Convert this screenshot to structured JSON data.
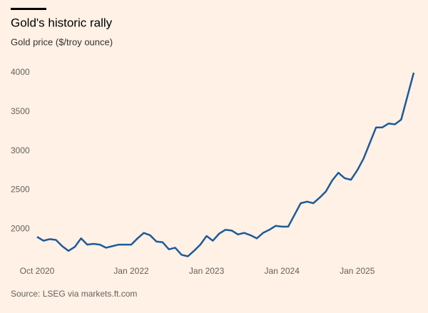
{
  "chart_data": {
    "type": "line",
    "title": "Gold's historic rally",
    "subtitle": "Gold price ($/troy ounce)",
    "source": "Source: LSEG via markets.ft.com",
    "x": [
      "2020-10",
      "2020-11",
      "2020-12",
      "2021-01",
      "2021-02",
      "2021-03",
      "2021-04",
      "2021-05",
      "2021-06",
      "2021-07",
      "2021-08",
      "2021-09",
      "2021-10",
      "2021-11",
      "2021-12",
      "2022-01",
      "2022-02",
      "2022-03",
      "2022-04",
      "2022-05",
      "2022-06",
      "2022-07",
      "2022-08",
      "2022-09",
      "2022-10",
      "2022-11",
      "2022-12",
      "2023-01",
      "2023-02",
      "2023-03",
      "2023-04",
      "2023-05",
      "2023-06",
      "2023-07",
      "2023-08",
      "2023-09",
      "2023-10",
      "2023-11",
      "2023-12",
      "2024-01",
      "2024-02",
      "2024-03",
      "2024-04",
      "2024-05",
      "2024-06",
      "2024-07",
      "2024-08",
      "2024-09",
      "2024-10",
      "2024-11",
      "2024-12",
      "2025-01",
      "2025-02",
      "2025-03",
      "2025-04",
      "2025-05",
      "2025-06",
      "2025-07",
      "2025-08",
      "2025-09",
      "2025-10"
    ],
    "series": [
      {
        "name": "Gold price",
        "color": "#1d5a9a",
        "values": [
          1900,
          1850,
          1870,
          1860,
          1780,
          1720,
          1770,
          1880,
          1800,
          1810,
          1800,
          1760,
          1780,
          1800,
          1800,
          1800,
          1880,
          1950,
          1920,
          1840,
          1830,
          1740,
          1760,
          1670,
          1650,
          1720,
          1800,
          1910,
          1850,
          1940,
          1990,
          1980,
          1930,
          1950,
          1920,
          1880,
          1950,
          1990,
          2040,
          2030,
          2030,
          2180,
          2330,
          2350,
          2330,
          2400,
          2480,
          2620,
          2720,
          2650,
          2630,
          2750,
          2900,
          3100,
          3300,
          3300,
          3350,
          3340,
          3400,
          3700,
          4000
        ]
      }
    ],
    "xlim": [
      "2020-10",
      "2025-10"
    ],
    "xticks": [
      {
        "value": "2020-10",
        "label": "Oct 2020"
      },
      {
        "value": "2022-01",
        "label": "Jan 2022"
      },
      {
        "value": "2023-01",
        "label": "Jan 2023"
      },
      {
        "value": "2024-01",
        "label": "Jan 2024"
      },
      {
        "value": "2025-01",
        "label": "Jan 2025"
      }
    ],
    "ylim": [
      1600,
      4000
    ],
    "yticks": [
      2000,
      2500,
      3000,
      3500,
      4000
    ],
    "grid": false
  }
}
